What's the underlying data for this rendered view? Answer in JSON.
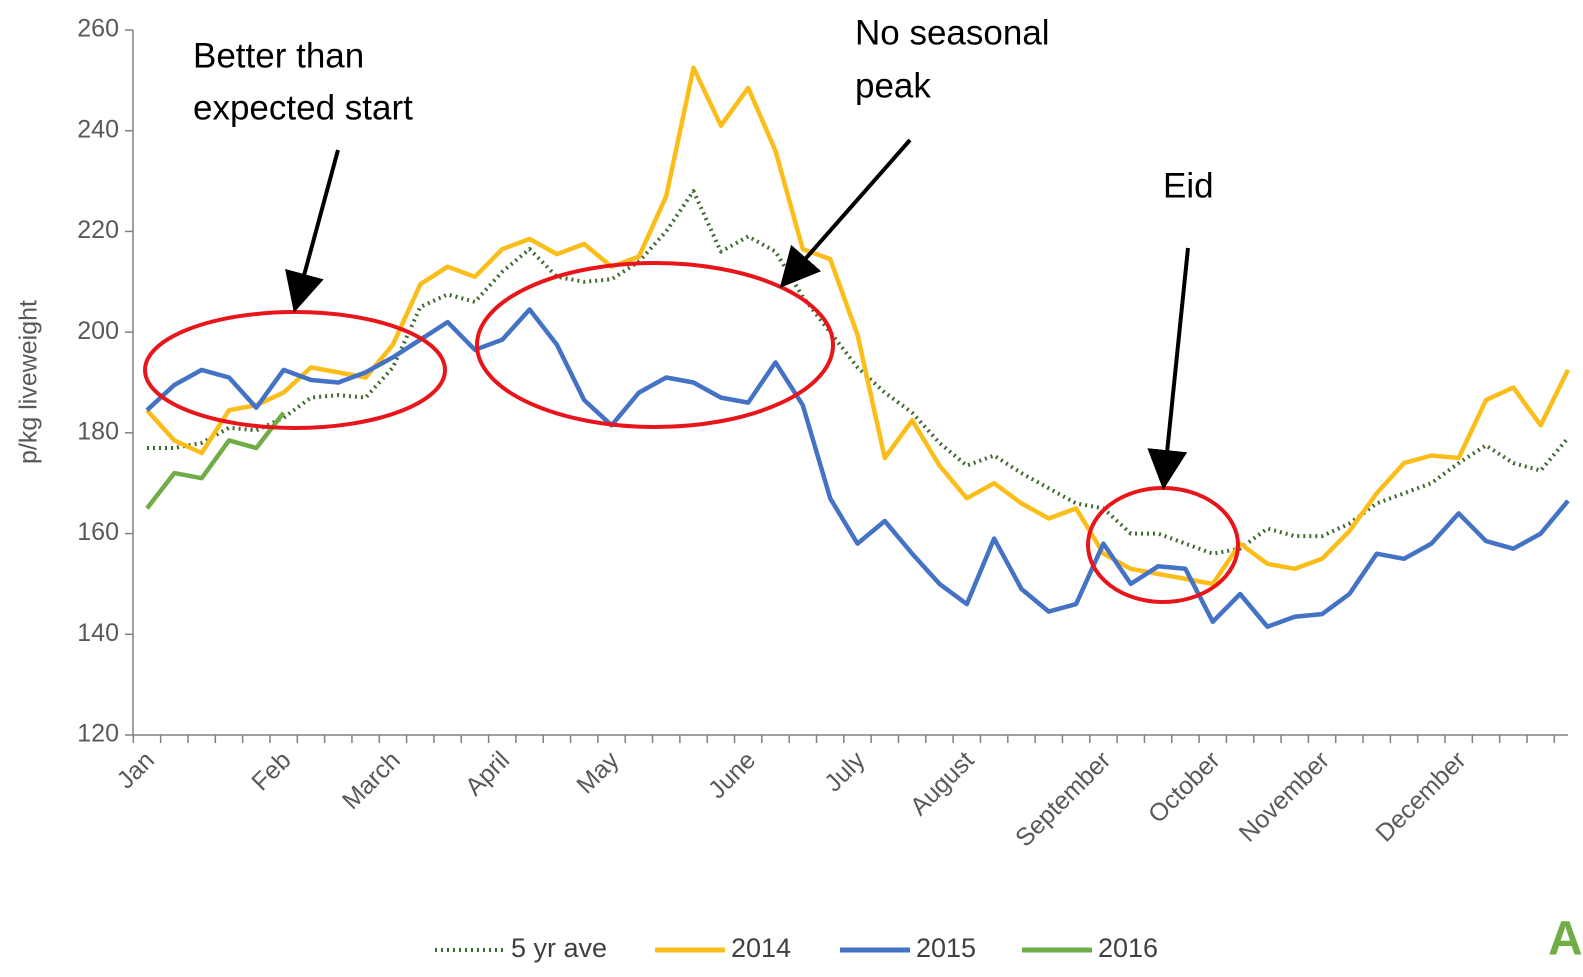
{
  "chart_data": {
    "type": "line",
    "y_label": "p/kg liveweight",
    "categories": [
      "Jan",
      null,
      null,
      null,
      null,
      "Feb",
      null,
      null,
      null,
      "March",
      null,
      null,
      null,
      "April",
      null,
      null,
      null,
      "May",
      null,
      null,
      null,
      null,
      "June",
      null,
      null,
      null,
      "July",
      null,
      null,
      null,
      "August",
      null,
      null,
      null,
      null,
      "September",
      null,
      null,
      null,
      "October",
      null,
      null,
      null,
      "November",
      null,
      null,
      null,
      null,
      "December",
      null,
      null,
      null,
      null
    ],
    "series": [
      {
        "name": "5 yr ave",
        "color": "#3e6b2e",
        "dash": "dotted",
        "values": [
          177,
          177,
          178,
          181,
          180.5,
          183,
          187,
          187.5,
          187,
          193,
          205,
          207.5,
          206,
          212,
          216.5,
          211,
          210,
          210.5,
          214,
          220,
          228,
          216,
          219,
          216,
          207,
          200,
          193,
          188,
          184,
          178,
          173.5,
          175.5,
          172,
          169,
          166,
          165,
          160,
          160,
          158,
          156,
          157,
          161,
          159.5,
          159.5,
          162,
          166,
          168,
          170,
          174,
          177.5,
          174,
          172.5,
          179
        ]
      },
      {
        "name": "2014",
        "color": "#fbbd1a",
        "values": [
          184.5,
          178.5,
          176,
          184.5,
          185.5,
          188,
          193,
          192,
          191,
          197.5,
          209.5,
          213,
          211,
          216.5,
          218.5,
          215.5,
          217.5,
          213,
          215,
          227,
          252.5,
          241,
          248.5,
          236,
          216.5,
          214.5,
          199.5,
          175,
          182.5,
          173.5,
          167,
          170,
          166,
          163,
          165,
          156,
          153,
          152,
          151,
          150,
          158,
          154,
          153,
          155,
          160.5,
          168,
          174,
          175.5,
          175,
          186.5,
          189,
          181.5,
          192.5
        ]
      },
      {
        "name": "2015",
        "color": "#4472c4",
        "values": [
          184.5,
          189.5,
          192.5,
          191,
          185,
          192.5,
          190.5,
          190,
          192,
          195,
          198.5,
          202,
          196.5,
          198.5,
          204.5,
          197.5,
          186.5,
          181.5,
          188,
          191,
          190,
          187,
          186,
          194,
          185.5,
          167,
          158,
          162.5,
          156,
          150,
          146,
          159,
          149,
          144.5,
          146,
          158,
          150,
          153.5,
          153,
          142.5,
          148,
          141.5,
          143.5,
          144,
          148,
          156,
          155,
          158,
          164,
          158.5,
          157,
          160,
          166.5
        ]
      },
      {
        "name": "2016",
        "color": "#70ad47",
        "values": [
          165,
          172,
          171,
          178.5,
          177,
          184,
          null,
          null,
          null,
          null,
          null,
          null,
          null,
          null,
          null,
          null,
          null,
          null,
          null,
          null,
          null,
          null,
          null,
          null,
          null,
          null,
          null,
          null,
          null,
          null,
          null,
          null,
          null,
          null,
          null,
          null,
          null,
          null,
          null,
          null,
          null,
          null,
          null,
          null,
          null,
          null,
          null,
          null,
          null,
          null,
          null,
          null,
          null
        ]
      }
    ],
    "ylim": [
      120,
      260
    ],
    "yticks": [
      120,
      140,
      160,
      180,
      200,
      220,
      240,
      260
    ],
    "legend": "bottom",
    "annotations": [
      [
        "Better than",
        "expected start"
      ],
      [
        "No seasonal",
        "peak"
      ],
      [
        "Eid"
      ]
    ],
    "logo_text": "A"
  }
}
